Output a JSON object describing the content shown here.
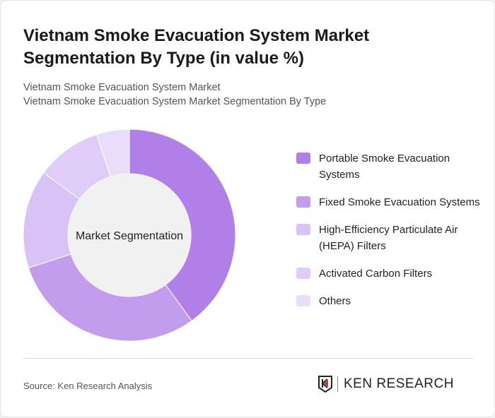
{
  "title": "Vietnam Smoke Evacuation System Market Segmentation By Type (in value %)",
  "subtitle1": "Vietnam Smoke Evacuation System Market",
  "subtitle2": "Vietnam Smoke Evacuation System Market Segmentation By Type",
  "source": "Source: Ken Research Analysis",
  "logo_text": "KEN RESEARCH",
  "chart_data": {
    "type": "pie",
    "donut": true,
    "center_label": "Market Segmentation",
    "categories": [
      "Portable Smoke Evacuation Systems",
      "Fixed Smoke Evacuation Systems",
      "High-Efficiency Particulate Air (HEPA) Filters",
      "Activated Carbon Filters",
      "Others"
    ],
    "values": [
      40,
      30,
      15,
      10,
      5
    ],
    "colors": [
      "#b07fe8",
      "#c49cee",
      "#d9c2f5",
      "#e0cdf7",
      "#e9ddfa"
    ],
    "legend_position": "right"
  }
}
